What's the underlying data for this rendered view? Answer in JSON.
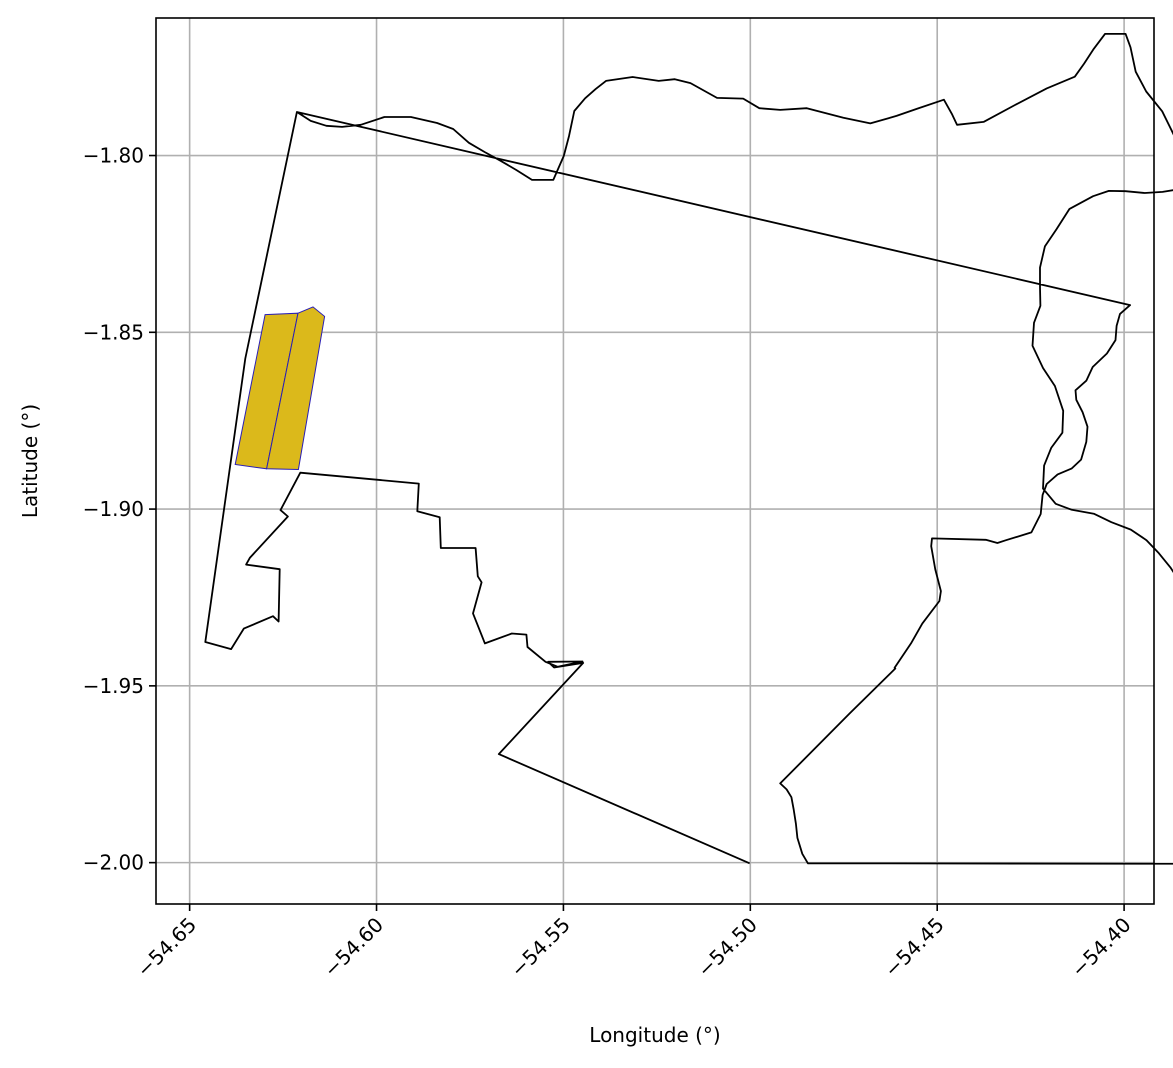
{
  "chart_data": {
    "type": "map",
    "xlabel": "Longitude (°)",
    "ylabel": "Latitude (°)",
    "xlim": [
      -54.659,
      -54.392
    ],
    "ylim": [
      -2.0117,
      -1.7611
    ],
    "grid": true,
    "x_ticks": [
      -54.65,
      -54.6,
      -54.55,
      -54.5,
      -54.45,
      -54.4
    ],
    "x_tick_labels": [
      "−54.65",
      "−54.60",
      "−54.55",
      "−54.50",
      "−54.45",
      "−54.40"
    ],
    "y_ticks": [
      -1.8,
      -1.85,
      -1.9,
      -1.95,
      -2.0
    ],
    "y_tick_labels": [
      "−1.80",
      "−1.85",
      "−1.90",
      "−1.95",
      "−2.00"
    ],
    "boundary": {
      "name": "",
      "stroke": "#000000",
      "fill": "none",
      "points": [
        [
          -54.6213,
          -1.7877
        ],
        [
          -54.6176,
          -1.7902
        ],
        [
          -54.6134,
          -1.7916
        ],
        [
          -54.6092,
          -1.7919
        ],
        [
          -54.6042,
          -1.7913
        ],
        [
          -54.5979,
          -1.7891
        ],
        [
          -54.5908,
          -1.7891
        ],
        [
          -54.5838,
          -1.7908
        ],
        [
          -54.5795,
          -1.7925
        ],
        [
          -54.5753,
          -1.7964
        ],
        [
          -54.5711,
          -1.799
        ],
        [
          -54.5668,
          -1.8015
        ],
        [
          -54.5626,
          -1.8041
        ],
        [
          -54.5584,
          -1.8069
        ],
        [
          -54.5527,
          -1.8069
        ],
        [
          -54.5499,
          -1.8001
        ],
        [
          -54.5485,
          -1.7945
        ],
        [
          -54.5471,
          -1.7874
        ],
        [
          -54.5442,
          -1.7838
        ],
        [
          -54.5414,
          -1.7812
        ],
        [
          -54.5386,
          -1.7789
        ],
        [
          -54.5315,
          -1.7778
        ],
        [
          -54.5245,
          -1.7789
        ],
        [
          -54.5202,
          -1.7784
        ],
        [
          -54.516,
          -1.7795
        ],
        [
          -54.5089,
          -1.7837
        ],
        [
          -54.5019,
          -1.7839
        ],
        [
          -54.4976,
          -1.7866
        ],
        [
          -54.492,
          -1.7871
        ],
        [
          -54.4849,
          -1.7866
        ],
        [
          -54.4751,
          -1.7893
        ],
        [
          -54.4679,
          -1.7909
        ],
        [
          -54.4609,
          -1.7888
        ],
        [
          -54.4552,
          -1.7867
        ],
        [
          -54.4482,
          -1.7842
        ],
        [
          -54.4461,
          -1.7882
        ],
        [
          -54.4447,
          -1.7913
        ],
        [
          -54.4376,
          -1.7905
        ],
        [
          -54.4292,
          -1.7857
        ],
        [
          -54.4207,
          -1.781
        ],
        [
          -54.4132,
          -1.7777
        ],
        [
          -54.4107,
          -1.774
        ],
        [
          -54.4081,
          -1.7698
        ],
        [
          -54.4051,
          -1.7656
        ],
        [
          -54.3996,
          -1.7656
        ],
        [
          -54.3983,
          -1.7694
        ],
        [
          -54.3969,
          -1.7763
        ],
        [
          -54.3941,
          -1.7819
        ],
        [
          -54.3898,
          -1.7875
        ],
        [
          -54.3871,
          -1.7933
        ],
        [
          -54.3842,
          -1.7998
        ],
        [
          -54.3845,
          -1.806
        ],
        [
          -54.3863,
          -1.8097
        ],
        [
          -54.3897,
          -1.8103
        ],
        [
          -54.3945,
          -1.8106
        ],
        [
          -54.3996,
          -1.8101
        ],
        [
          -54.4041,
          -1.81
        ],
        [
          -54.4083,
          -1.8115
        ],
        [
          -54.4146,
          -1.8151
        ],
        [
          -54.4181,
          -1.8209
        ],
        [
          -54.4212,
          -1.8257
        ],
        [
          -54.4225,
          -1.8317
        ],
        [
          -54.4225,
          -1.8372
        ],
        [
          -54.4224,
          -1.8425
        ],
        [
          -54.4241,
          -1.8473
        ],
        [
          -54.4245,
          -1.8538
        ],
        [
          -54.4217,
          -1.8601
        ],
        [
          -54.4185,
          -1.8652
        ],
        [
          -54.4163,
          -1.8722
        ],
        [
          -54.4165,
          -1.8784
        ],
        [
          -54.4195,
          -1.8827
        ],
        [
          -54.4214,
          -1.8877
        ],
        [
          -54.4217,
          -1.8942
        ],
        [
          -54.4183,
          -1.8985
        ],
        [
          -54.414,
          -1.9002
        ],
        [
          -54.4081,
          -1.9013
        ],
        [
          -54.4034,
          -1.9037
        ],
        [
          -54.3982,
          -1.9058
        ],
        [
          -54.394,
          -1.9088
        ],
        [
          -54.3907,
          -1.9125
        ],
        [
          -54.3876,
          -1.9165
        ],
        [
          -54.3856,
          -1.9197
        ],
        [
          -54.3829,
          -1.9238
        ],
        [
          -54.3796,
          -1.9283
        ],
        [
          -54.3755,
          -1.9317
        ],
        [
          -54.3711,
          -1.9348
        ],
        [
          -54.3677,
          -1.9385
        ],
        [
          -54.3654,
          -1.9428
        ],
        [
          -54.3624,
          -1.9473
        ],
        [
          -54.3588,
          -1.9517
        ],
        [
          -54.3555,
          -1.9568
        ],
        [
          -54.3547,
          -1.9614
        ],
        [
          -54.355,
          -1.9665
        ],
        [
          -54.3531,
          -1.9707
        ],
        [
          -54.3506,
          -1.9746
        ],
        [
          -54.348,
          -1.9788
        ],
        [
          -54.3456,
          -1.9827
        ],
        [
          -54.3434,
          -1.9871
        ],
        [
          -54.3411,
          -1.9919
        ],
        [
          -54.3386,
          -1.9968
        ],
        [
          -54.335,
          -2.0004
        ],
        [
          -54.4846,
          -2.0002
        ],
        [
          -54.4861,
          -1.9975
        ],
        [
          -54.4874,
          -1.993
        ],
        [
          -54.4878,
          -1.989
        ],
        [
          -54.4884,
          -1.985
        ],
        [
          -54.489,
          -1.9815
        ],
        [
          -54.4903,
          -1.9793
        ],
        [
          -54.492,
          -1.9776
        ],
        [
          -54.4734,
          -1.9578
        ],
        [
          -54.4612,
          -1.9451
        ],
        [
          -54.4614,
          -1.9449
        ],
        [
          -54.457,
          -1.938
        ],
        [
          -54.454,
          -1.9324
        ],
        [
          -54.4494,
          -1.926
        ],
        [
          -54.449,
          -1.9232
        ],
        [
          -54.4505,
          -1.9171
        ],
        [
          -54.4516,
          -1.9105
        ],
        [
          -54.4514,
          -1.9083
        ],
        [
          -54.437,
          -1.9087
        ],
        [
          -54.4339,
          -1.9096
        ],
        [
          -54.4316,
          -1.9088
        ],
        [
          -54.4248,
          -1.9066
        ],
        [
          -54.4223,
          -1.9014
        ],
        [
          -54.4218,
          -1.896
        ],
        [
          -54.4207,
          -1.8929
        ],
        [
          -54.4178,
          -1.8902
        ],
        [
          -54.414,
          -1.8885
        ],
        [
          -54.4115,
          -1.886
        ],
        [
          -54.4101,
          -1.881
        ],
        [
          -54.4098,
          -1.8767
        ],
        [
          -54.4111,
          -1.8726
        ],
        [
          -54.4128,
          -1.8691
        ],
        [
          -54.413,
          -1.8664
        ],
        [
          -54.4101,
          -1.8637
        ],
        [
          -54.4084,
          -1.8598
        ],
        [
          -54.4046,
          -1.856
        ],
        [
          -54.4023,
          -1.8522
        ],
        [
          -54.402,
          -1.8482
        ],
        [
          -54.4011,
          -1.8448
        ],
        [
          -54.3984,
          -1.8423
        ]
      ]
    },
    "inner_boundary": {
      "stroke": "#000000",
      "points": [
        [
          -54.6213,
          -1.7877
        ],
        [
          -54.6351,
          -1.8574
        ],
        [
          -54.6458,
          -1.9376
        ],
        [
          -54.6389,
          -1.9396
        ],
        [
          -54.6355,
          -1.9338
        ],
        [
          -54.6277,
          -1.9303
        ],
        [
          -54.6262,
          -1.9318
        ],
        [
          -54.6259,
          -1.917
        ],
        [
          -54.6349,
          -1.9157
        ],
        [
          -54.6339,
          -1.9138
        ],
        [
          -54.6237,
          -1.9021
        ],
        [
          -54.6257,
          -1.9003
        ],
        [
          -54.6204,
          -1.8897
        ],
        [
          -54.5887,
          -1.8928
        ],
        [
          -54.5891,
          -1.9006
        ],
        [
          -54.5831,
          -1.9023
        ],
        [
          -54.5828,
          -1.911
        ],
        [
          -54.5735,
          -1.911
        ],
        [
          -54.5729,
          -1.919
        ],
        [
          -54.5719,
          -1.9207
        ],
        [
          -54.5742,
          -1.9295
        ],
        [
          -54.571,
          -1.938
        ],
        [
          -54.5638,
          -1.9352
        ],
        [
          -54.5599,
          -1.9355
        ],
        [
          -54.5596,
          -1.939
        ],
        [
          -54.5548,
          -1.9432
        ],
        [
          -54.5515,
          -1.9446
        ],
        [
          -54.5449,
          -1.9431
        ],
        [
          -54.5541,
          -1.9432
        ],
        [
          -54.5525,
          -1.9448
        ],
        [
          -54.5447,
          -1.9435
        ],
        [
          -54.5673,
          -1.9693
        ],
        [
          -54.5002,
          -2.0002
        ]
      ]
    },
    "highlighted_parcels": {
      "fill": "#dbb91b",
      "stroke": "#2a1fb5",
      "polygons": [
        [
          [
            -54.6298,
            -1.845
          ],
          [
            -54.621,
            -1.8446
          ],
          [
            -54.6294,
            -1.8886
          ],
          [
            -54.6378,
            -1.8874
          ]
        ],
        [
          [
            -54.621,
            -1.8446
          ],
          [
            -54.617,
            -1.8428
          ],
          [
            -54.6139,
            -1.8455
          ],
          [
            -54.6209,
            -1.8888
          ],
          [
            -54.6294,
            -1.8886
          ]
        ]
      ]
    }
  }
}
